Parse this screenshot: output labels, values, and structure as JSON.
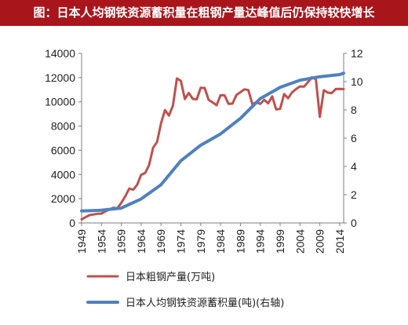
{
  "title": "图：日本人均钢铁资源蓄积量在粗钢产量达峰值后仍保持较快增长",
  "colors": {
    "title_bg": "#a8161c",
    "production": "#c0504d",
    "stock": "#4f81bd"
  },
  "chart_data": {
    "type": "line",
    "x_tick_labels": [
      "1949",
      "1954",
      "1959",
      "1964",
      "1969",
      "1974",
      "1979",
      "1984",
      "1989",
      "1994",
      "1999",
      "2004",
      "2009",
      "2014"
    ],
    "y_left": {
      "ticks": [
        "0",
        "2000",
        "4000",
        "6000",
        "8000",
        "10000",
        "12000",
        "14000"
      ],
      "lim": [
        0,
        14000
      ]
    },
    "y_right": {
      "ticks": [
        "0",
        "2",
        "4",
        "6",
        "8",
        "10",
        "12"
      ],
      "lim": [
        0,
        12
      ]
    },
    "grid": false,
    "legend_position": "bottom",
    "series": [
      {
        "name": "日本粗钢产量(万吨)",
        "axis": "left",
        "x": [
          1949,
          1950,
          1951,
          1952,
          1953,
          1954,
          1955,
          1956,
          1957,
          1958,
          1959,
          1960,
          1961,
          1962,
          1963,
          1964,
          1965,
          1966,
          1967,
          1968,
          1969,
          1970,
          1971,
          1972,
          1973,
          1974,
          1975,
          1976,
          1977,
          1978,
          1979,
          1980,
          1981,
          1982,
          1983,
          1984,
          1985,
          1986,
          1987,
          1988,
          1989,
          1990,
          1991,
          1992,
          1993,
          1994,
          1995,
          1996,
          1997,
          1998,
          1999,
          2000,
          2001,
          2002,
          2003,
          2004,
          2005,
          2006,
          2007,
          2008,
          2009,
          2010,
          2011,
          2012,
          2013,
          2014,
          2015
        ],
        "values": [
          300,
          480,
          650,
          700,
          760,
          770,
          950,
          1110,
          1260,
          1210,
          1660,
          2210,
          2830,
          2750,
          3150,
          3980,
          4120,
          4780,
          6210,
          6690,
          8220,
          9330,
          8860,
          9690,
          11930,
          11730,
          10230,
          10740,
          10240,
          10210,
          11170,
          11140,
          10160,
          9950,
          9720,
          10550,
          10540,
          9830,
          9850,
          10570,
          10790,
          11030,
          10970,
          9810,
          9960,
          9830,
          10160,
          9880,
          10450,
          9370,
          9420,
          10640,
          10290,
          10780,
          11050,
          11270,
          11250,
          11620,
          12020,
          11870,
          8750,
          10960,
          10760,
          10720,
          11060,
          11070,
          11050
        ]
      },
      {
        "name": "日本人均钢铁资源蓄积量(吨)(右轴)",
        "axis": "right",
        "x": [
          1949,
          1954,
          1959,
          1964,
          1969,
          1974,
          1979,
          1984,
          1989,
          1994,
          1999,
          2004,
          2009,
          2014,
          2015
        ],
        "values": [
          0.85,
          0.9,
          1.05,
          1.7,
          2.7,
          4.4,
          5.5,
          6.3,
          7.4,
          8.8,
          9.6,
          10.1,
          10.35,
          10.5,
          10.6
        ]
      }
    ]
  }
}
